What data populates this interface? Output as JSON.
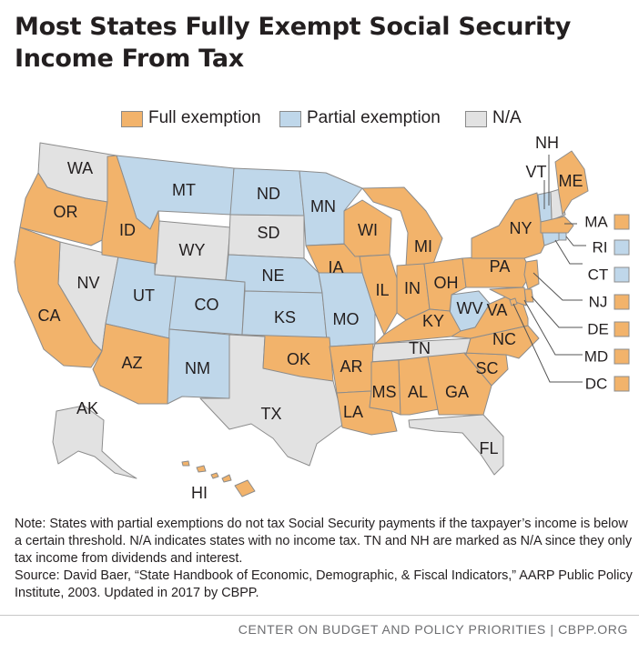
{
  "title": {
    "line1": "Most States Fully Exempt Social Security",
    "line2": "Income From Tax"
  },
  "legend": {
    "full": "Full exemption",
    "partial": "Partial exemption",
    "na": "N/A"
  },
  "colors": {
    "full": "#f2b36b",
    "partial": "#bfd7ea",
    "na": "#e2e2e2",
    "border": "#8c8c8c"
  },
  "states": {
    "WA": "WA",
    "OR": "OR",
    "CA": "CA",
    "NV": "NV",
    "ID": "ID",
    "MT": "MT",
    "WY": "WY",
    "UT": "UT",
    "CO": "CO",
    "AZ": "AZ",
    "NM": "NM",
    "ND": "ND",
    "SD": "SD",
    "NE": "NE",
    "KS": "KS",
    "OK": "OK",
    "TX": "TX",
    "MN": "MN",
    "IA": "IA",
    "MO": "MO",
    "AR": "AR",
    "LA": "LA",
    "WI": "WI",
    "IL": "IL",
    "MI": "MI",
    "IN": "IN",
    "OH": "OH",
    "KY": "KY",
    "TN": "TN",
    "MS": "MS",
    "AL": "AL",
    "GA": "GA",
    "FL": "FL",
    "SC": "SC",
    "NC": "NC",
    "VA": "VA",
    "WV": "WV",
    "PA": "PA",
    "NY": "NY",
    "ME": "ME",
    "VT": "VT",
    "NH": "NH",
    "MA": "MA",
    "RI": "RI",
    "CT": "CT",
    "NJ": "NJ",
    "DE": "DE",
    "MD": "MD",
    "DC": "DC",
    "AK": "AK",
    "HI": "HI"
  },
  "note": "Note: States with partial exemptions do not tax Social Security payments if the taxpayer’s income is below a certain threshold. N/A indicates states with no income tax. TN and NH are marked as N/A since they only tax income from dividends and interest.",
  "source": "Source: David Baer, “State Handbook of Economic, Demographic, & Fiscal Indicators,” AARP Public Policy Institute, 2003. Updated in 2017 by CBPP.",
  "footer": "CENTER ON BUDGET AND POLICY PRIORITIES | CBPP.ORG"
}
